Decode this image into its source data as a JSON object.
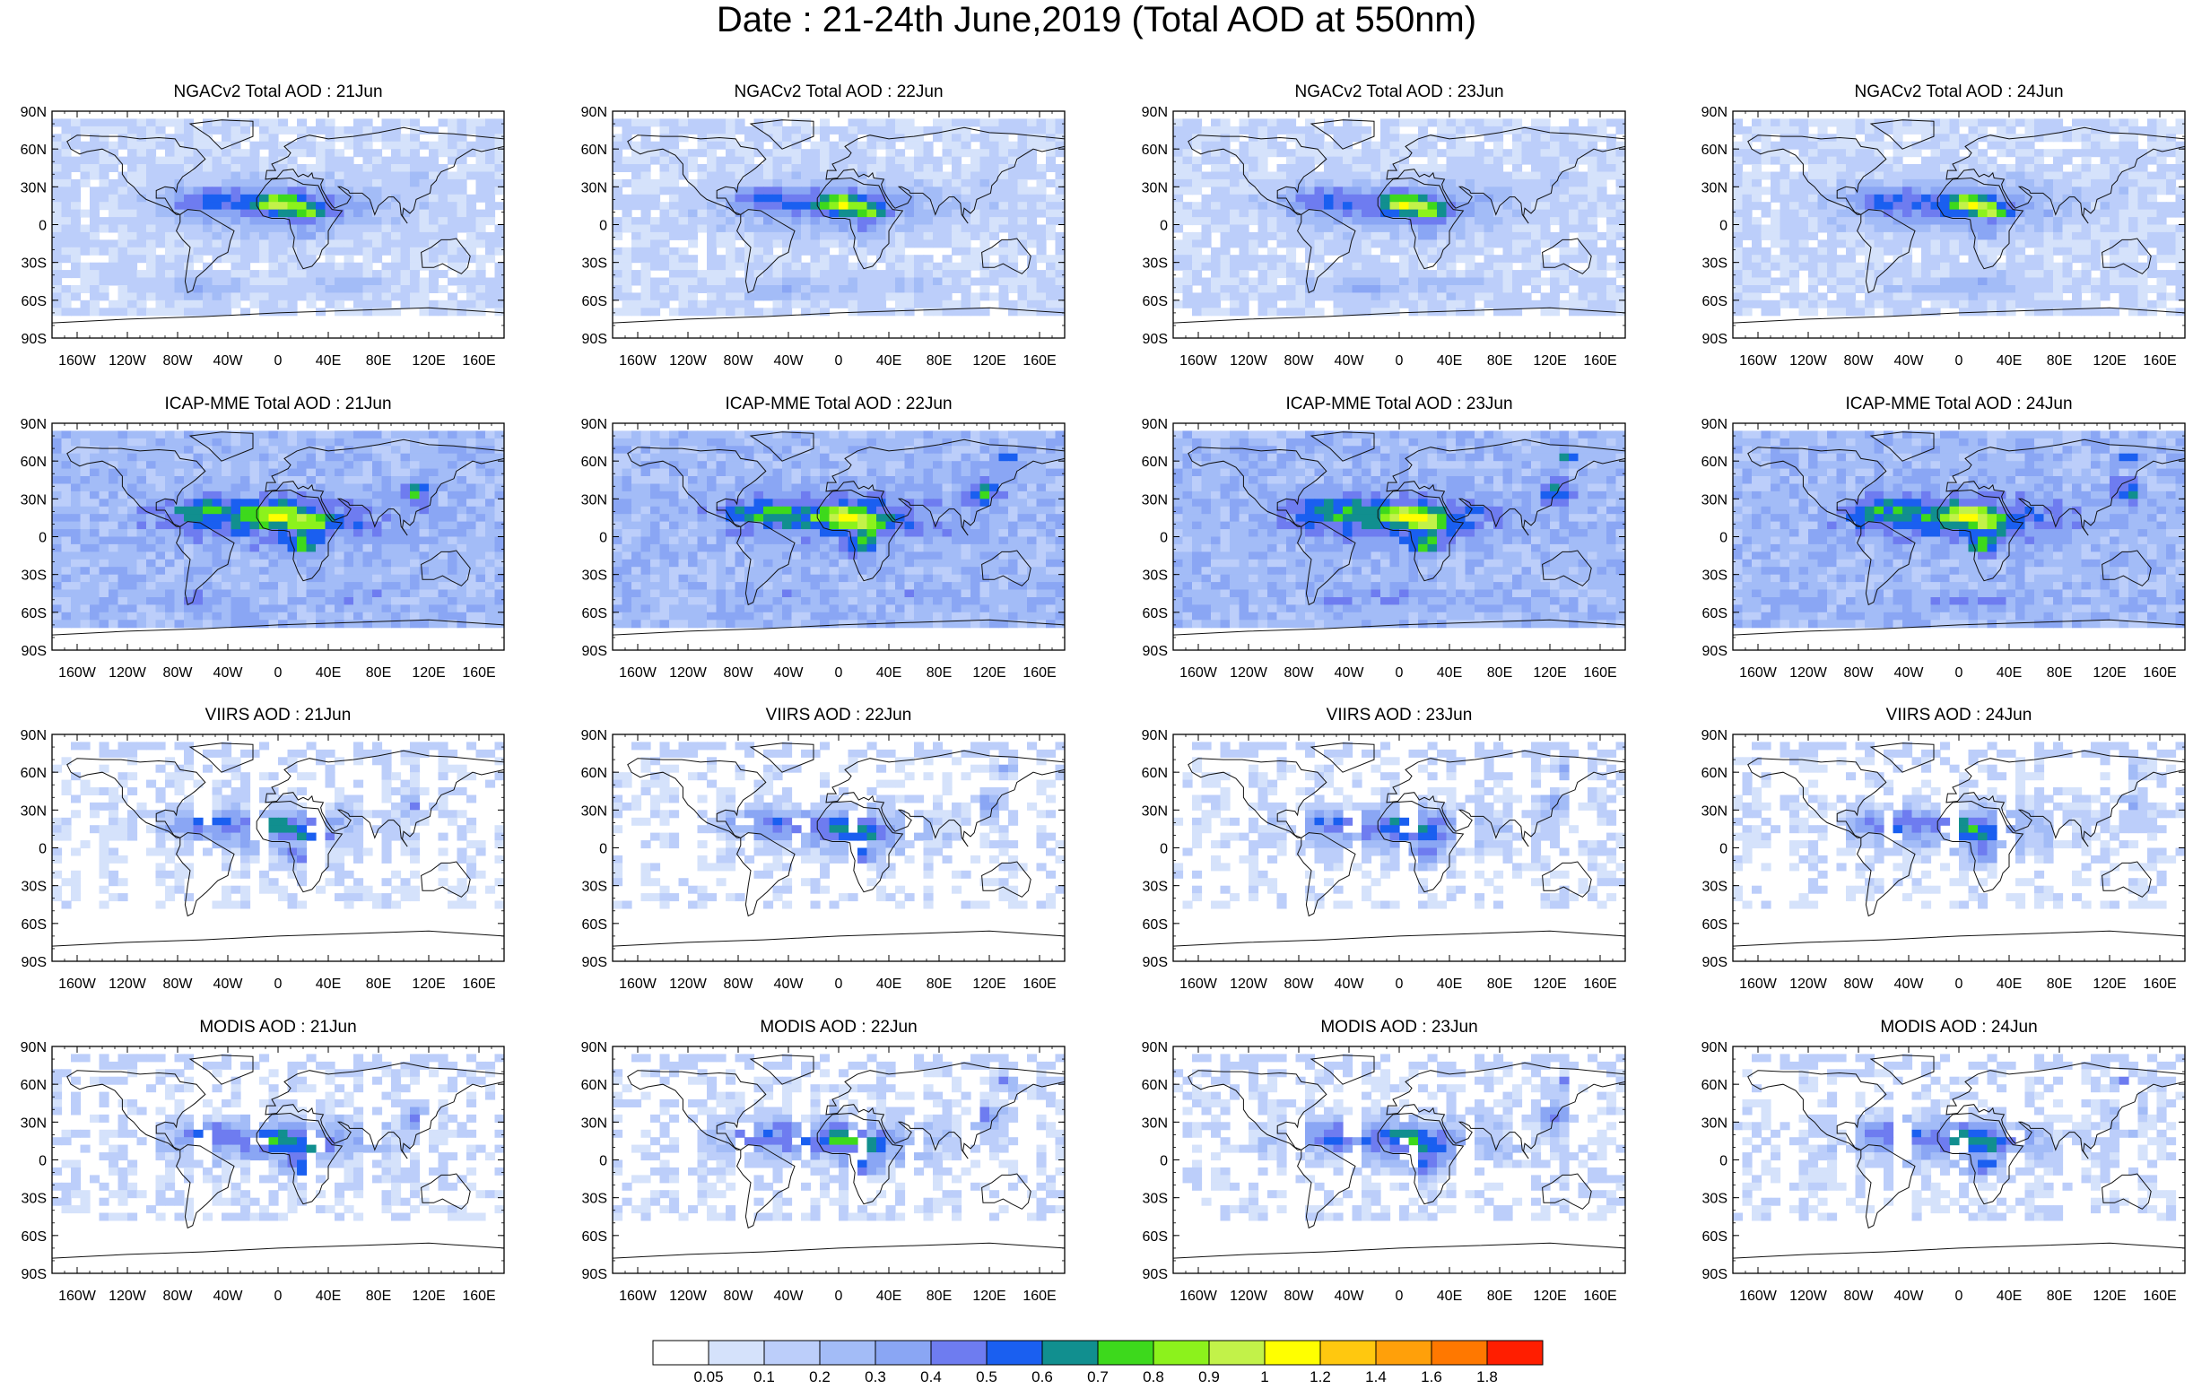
{
  "title": "Date : 21-24th June,2019 (Total AOD at 550nm)",
  "rows": [
    {
      "id": "ngac",
      "panels": [
        {
          "title": "NGACv2 Total AOD : 21Jun"
        },
        {
          "title": "NGACv2 Total AOD : 22Jun"
        },
        {
          "title": "NGACv2 Total AOD : 23Jun"
        },
        {
          "title": "NGACv2 Total AOD : 24Jun"
        }
      ]
    },
    {
      "id": "icap",
      "panels": [
        {
          "title": "ICAP-MME Total AOD : 21Jun"
        },
        {
          "title": "ICAP-MME Total AOD : 22Jun"
        },
        {
          "title": "ICAP-MME Total AOD : 23Jun"
        },
        {
          "title": "ICAP-MME Total AOD : 24Jun"
        }
      ]
    },
    {
      "id": "viirs",
      "panels": [
        {
          "title": "VIIRS AOD : 21Jun"
        },
        {
          "title": "VIIRS AOD : 22Jun"
        },
        {
          "title": "VIIRS AOD : 23Jun"
        },
        {
          "title": "VIIRS AOD : 24Jun"
        }
      ]
    },
    {
      "id": "modis",
      "panels": [
        {
          "title": "MODIS AOD : 21Jun"
        },
        {
          "title": "MODIS AOD : 22Jun"
        },
        {
          "title": "MODIS AOD : 23Jun"
        },
        {
          "title": "MODIS AOD : 24Jun"
        }
      ]
    }
  ],
  "lat_labels": [
    "90N",
    "60N",
    "30N",
    "0",
    "30S",
    "60S",
    "90S"
  ],
  "lon_labels": [
    "160W",
    "120W",
    "80W",
    "40W",
    "0",
    "40E",
    "80E",
    "120E",
    "160E"
  ],
  "colorbar": {
    "labels": [
      "0.05",
      "0.1",
      "0.2",
      "0.3",
      "0.4",
      "0.5",
      "0.6",
      "0.7",
      "0.8",
      "0.9",
      "1",
      "1.2",
      "1.4",
      "1.6",
      "1.8"
    ],
    "colors": [
      "#ffffff",
      "#d5e2fb",
      "#bccefa",
      "#a3bcf7",
      "#8aa6f4",
      "#6e7cf0",
      "#1a5ff0",
      "#118f8f",
      "#3dd91c",
      "#8cf21c",
      "#c2f249",
      "#ffff00",
      "#ffc80f",
      "#ffa00a",
      "#ff7800",
      "#ff1e00"
    ]
  }
}
